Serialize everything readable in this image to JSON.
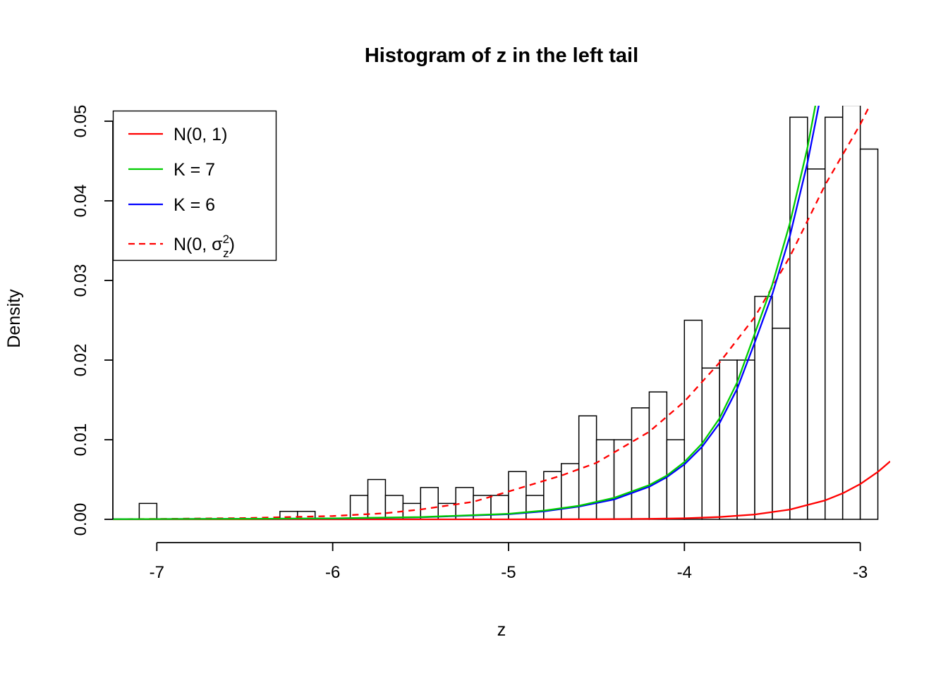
{
  "chart_data": {
    "type": "histogram",
    "title": "Histogram of z in the left tail",
    "xlabel": "z",
    "ylabel": "Density",
    "xlim": [
      -7.25,
      -2.83
    ],
    "ylim": [
      0,
      0.052
    ],
    "grid": false,
    "x_ticks": [
      {
        "v": -7,
        "label": "-7"
      },
      {
        "v": -6,
        "label": "-6"
      },
      {
        "v": -5,
        "label": "-5"
      },
      {
        "v": -4,
        "label": "-4"
      },
      {
        "v": -3,
        "label": "-3"
      }
    ],
    "y_ticks": [
      {
        "v": 0.0,
        "label": "0.00"
      },
      {
        "v": 0.01,
        "label": "0.01"
      },
      {
        "v": 0.02,
        "label": "0.02"
      },
      {
        "v": 0.03,
        "label": "0.03"
      },
      {
        "v": 0.04,
        "label": "0.04"
      },
      {
        "v": 0.05,
        "label": "0.05"
      }
    ],
    "histogram": {
      "bin_width": 0.1,
      "bar_fill": "#ffffff",
      "bar_stroke": "#000000",
      "bin_starts": [
        -7.1,
        -7.0,
        -6.9,
        -6.8,
        -6.7,
        -6.6,
        -6.5,
        -6.4,
        -6.3,
        -6.2,
        -6.1,
        -6.0,
        -5.9,
        -5.8,
        -5.7,
        -5.6,
        -5.5,
        -5.4,
        -5.3,
        -5.2,
        -5.1,
        -5.0,
        -4.9,
        -4.8,
        -4.7,
        -4.6,
        -4.5,
        -4.4,
        -4.3,
        -4.2,
        -4.1,
        -4.0,
        -3.9,
        -3.8,
        -3.7,
        -3.6,
        -3.5,
        -3.4,
        -3.3,
        -3.2,
        -3.1,
        -3.0
      ],
      "densities": [
        0.002,
        0,
        0,
        0,
        0,
        0,
        0,
        0,
        0.001,
        0.001,
        0,
        0,
        0.003,
        0.005,
        0.003,
        0.002,
        0.004,
        0.002,
        0.004,
        0.003,
        0.003,
        0.006,
        0.003,
        0.006,
        0.007,
        0.013,
        0.01,
        0.01,
        0.014,
        0.016,
        0.01,
        0.025,
        0.019,
        0.02,
        0.02,
        0.028,
        0.024,
        0.0505,
        0.044,
        0.0505,
        0.052,
        0.0465
      ]
    },
    "curves": [
      {
        "name": "N(0, 1)",
        "color": "#ff0000",
        "dashed": false,
        "points": [
          [
            -7.3,
            0
          ],
          [
            -5.5,
            1e-07
          ],
          [
            -5,
            1.5e-06
          ],
          [
            -4.5,
            1.6e-05
          ],
          [
            -4.2,
            5.9e-05
          ],
          [
            -4,
            0.000134
          ],
          [
            -3.8,
            0.000292
          ],
          [
            -3.6,
            0.000612
          ],
          [
            -3.4,
            0.001232
          ],
          [
            -3.2,
            0.002384
          ],
          [
            -3.1,
            0.003267
          ],
          [
            -3.0,
            0.004432
          ],
          [
            -2.9,
            0.005953
          ],
          [
            -2.83,
            0.00727
          ]
        ]
      },
      {
        "name": "N(0, sigma_z^2)",
        "color": "#ff0000",
        "dashed": true,
        "points": [
          [
            -7.3,
            2e-05
          ],
          [
            -7,
            5e-05
          ],
          [
            -6.5,
            0.00016
          ],
          [
            -6,
            0.00042
          ],
          [
            -5.7,
            0.00077
          ],
          [
            -5.5,
            0.00124
          ],
          [
            -5.2,
            0.0022
          ],
          [
            -5,
            0.0035
          ],
          [
            -4.7,
            0.0055
          ],
          [
            -4.5,
            0.0071
          ],
          [
            -4.2,
            0.011
          ],
          [
            -4,
            0.0148
          ],
          [
            -3.8,
            0.0197
          ],
          [
            -3.6,
            0.0254
          ],
          [
            -3.4,
            0.033
          ],
          [
            -3.2,
            0.042
          ],
          [
            -3.0,
            0.0496
          ],
          [
            -2.9,
            0.054
          ],
          [
            -2.85,
            0.0576
          ]
        ]
      },
      {
        "name": "K = 6",
        "color": "#0000ff",
        "dashed": false,
        "points": [
          [
            -7.3,
            2e-05
          ],
          [
            -6.5,
            6e-05
          ],
          [
            -6,
            0.00011
          ],
          [
            -5.5,
            0.00026
          ],
          [
            -5,
            0.00065
          ],
          [
            -4.8,
            0.001
          ],
          [
            -4.6,
            0.0016
          ],
          [
            -4.4,
            0.0025
          ],
          [
            -4.2,
            0.0041
          ],
          [
            -4.1,
            0.0053
          ],
          [
            -4.0,
            0.0069
          ],
          [
            -3.9,
            0.0091
          ],
          [
            -3.8,
            0.0121
          ],
          [
            -3.7,
            0.0164
          ],
          [
            -3.6,
            0.0222
          ],
          [
            -3.5,
            0.0283
          ],
          [
            -3.4,
            0.0356
          ],
          [
            -3.3,
            0.0448
          ],
          [
            -3.2,
            0.056
          ],
          [
            -3.1,
            0.071
          ]
        ]
      },
      {
        "name": "K = 7",
        "color": "#00cc00",
        "dashed": false,
        "points": [
          [
            -7.3,
            2e-05
          ],
          [
            -6.5,
            6e-05
          ],
          [
            -6,
            0.00012
          ],
          [
            -5.5,
            0.00028
          ],
          [
            -5,
            0.0007
          ],
          [
            -4.8,
            0.0011
          ],
          [
            -4.6,
            0.0017
          ],
          [
            -4.4,
            0.0027
          ],
          [
            -4.2,
            0.0043
          ],
          [
            -4.1,
            0.0055
          ],
          [
            -4.0,
            0.0072
          ],
          [
            -3.9,
            0.0095
          ],
          [
            -3.8,
            0.0127
          ],
          [
            -3.7,
            0.0172
          ],
          [
            -3.6,
            0.0233
          ],
          [
            -3.5,
            0.0295
          ],
          [
            -3.4,
            0.0372
          ],
          [
            -3.3,
            0.0467
          ],
          [
            -3.2,
            0.0585
          ],
          [
            -3.1,
            0.074
          ]
        ]
      }
    ],
    "legend": {
      "position": "topleft",
      "items": [
        {
          "label": "N(0, 1)",
          "color": "#ff0000",
          "dashed": false
        },
        {
          "label": "K = 7",
          "color": "#00cc00",
          "dashed": false
        },
        {
          "label": "K = 6",
          "color": "#0000ff",
          "dashed": false
        },
        {
          "label": "N(0, σz²)",
          "color": "#ff0000",
          "dashed": true,
          "rich": {
            "prefix": "N(0, ",
            "symbol": "σ",
            "sup": "2",
            "sub": "z",
            "suffix": ")"
          }
        }
      ]
    }
  }
}
